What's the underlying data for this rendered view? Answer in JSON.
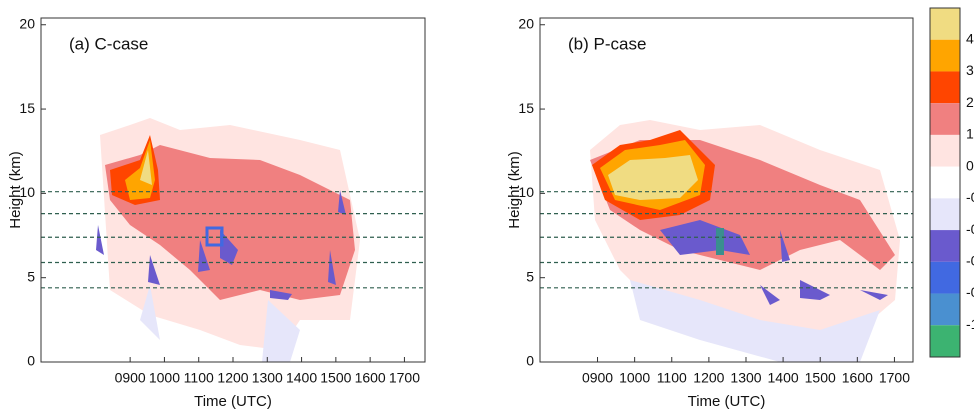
{
  "chart_data": [
    {
      "type": "contour",
      "title": "(a) C-case",
      "xlabel": "Time (UTC)",
      "ylabel": "Height (km)",
      "xlim": [
        6.4,
        17.6
      ],
      "ylim": [
        0,
        20.4
      ],
      "xticks": [
        {
          "value": 9,
          "label": "0900"
        },
        {
          "value": 10,
          "label": "1000"
        },
        {
          "value": 11,
          "label": "1100"
        },
        {
          "value": 12,
          "label": "1200"
        },
        {
          "value": 13,
          "label": "1300"
        },
        {
          "value": 14,
          "label": "1400"
        },
        {
          "value": 15,
          "label": "1500"
        },
        {
          "value": 16,
          "label": "1600"
        },
        {
          "value": 17,
          "label": "1700"
        }
      ],
      "yticks": [
        0,
        5,
        10,
        15,
        20
      ],
      "dashed_heights": [
        10.1,
        8.8,
        7.4,
        5.9,
        4.4
      ],
      "dashed_color": "#2f5f4f"
    },
    {
      "type": "contour",
      "title": "(b) P-case",
      "xlabel": "Time (UTC)",
      "ylabel": "Height (km)",
      "xlim": [
        7.45,
        17.5
      ],
      "ylim": [
        0,
        20.4
      ],
      "xticks": [
        {
          "value": 9,
          "label": "0900"
        },
        {
          "value": 10,
          "label": "1000"
        },
        {
          "value": 11,
          "label": "1100"
        },
        {
          "value": 12,
          "label": "1200"
        },
        {
          "value": 13,
          "label": "1300"
        },
        {
          "value": 14,
          "label": "1400"
        },
        {
          "value": 15,
          "label": "1500"
        },
        {
          "value": 16,
          "label": "1600"
        },
        {
          "value": 17,
          "label": "1700"
        }
      ],
      "yticks": [
        0,
        5,
        10,
        15,
        20
      ],
      "dashed_heights": [
        10.1,
        8.8,
        7.4,
        5.9,
        4.4
      ],
      "dashed_color": "#2f5f4f"
    }
  ],
  "colorbar": {
    "colors": [
      "#f0dc82",
      "#ffa500",
      "#ff4500",
      "#f08080",
      "#ffe4e1",
      "#ffffff",
      "#e6e6fa",
      "#6a5acd",
      "#4169e1",
      "#4a90d0",
      "#3cb371"
    ],
    "labels": [
      "4",
      "3",
      "2",
      "1",
      "0",
      "-0",
      "-0",
      "-0",
      "-0",
      "-1"
    ]
  }
}
